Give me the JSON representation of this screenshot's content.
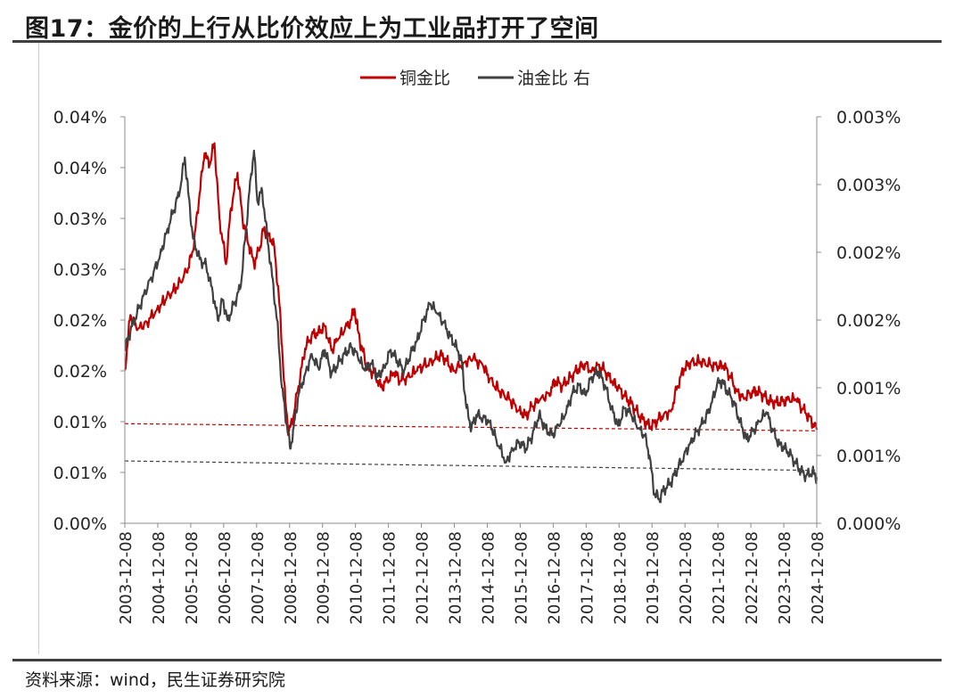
{
  "figure": {
    "title": "图17：金价的上行从比价效应上为工业品打开了空间",
    "source": "资料来源：wind，民生证券研究院"
  },
  "chart_data": {
    "type": "line",
    "legend_position": "top-center",
    "grid": false,
    "x_tick_labels": [
      "2003-12-08",
      "2004-12-08",
      "2005-12-08",
      "2006-12-08",
      "2007-12-08",
      "2008-12-08",
      "2009-12-08",
      "2010-12-08",
      "2011-12-08",
      "2012-12-08",
      "2013-12-08",
      "2014-12-08",
      "2015-12-08",
      "2016-12-08",
      "2017-12-08",
      "2018-12-08",
      "2019-12-08",
      "2020-12-08",
      "2021-12-08",
      "2022-12-08",
      "2023-12-08",
      "2024-12-08"
    ],
    "x_range": [
      2003.93,
      2024.93
    ],
    "y_left": {
      "ylim": [
        0,
        0.04
      ],
      "tick_values": [
        0,
        0.005,
        0.01,
        0.015,
        0.02,
        0.025,
        0.03,
        0.035,
        0.04
      ],
      "tick_labels": [
        "0.00%",
        "0.01%",
        "0.01%",
        "0.02%",
        "0.02%",
        "0.03%",
        "0.03%",
        "0.04%",
        "0.04%"
      ]
    },
    "y_right": {
      "ylim": [
        0,
        0.003
      ],
      "tick_values": [
        0,
        0.0005,
        0.001,
        0.0015,
        0.002,
        0.0025,
        0.003
      ],
      "tick_labels": [
        "0.000%",
        "0.001%",
        "0.001%",
        "0.002%",
        "0.002%",
        "0.003%",
        "0.003%"
      ]
    },
    "series": [
      {
        "name": "铜金比",
        "axis": "left",
        "color": "#c00000",
        "points": [
          [
            2003.93,
            0.0151
          ],
          [
            2004.1,
            0.0205
          ],
          [
            2004.3,
            0.019
          ],
          [
            2004.6,
            0.0198
          ],
          [
            2004.9,
            0.021
          ],
          [
            2005.2,
            0.0222
          ],
          [
            2005.5,
            0.0232
          ],
          [
            2005.8,
            0.0247
          ],
          [
            2006.0,
            0.0268
          ],
          [
            2006.2,
            0.0325
          ],
          [
            2006.35,
            0.0364
          ],
          [
            2006.5,
            0.0352
          ],
          [
            2006.65,
            0.0374
          ],
          [
            2006.8,
            0.03
          ],
          [
            2006.9,
            0.0278
          ],
          [
            2007.0,
            0.0255
          ],
          [
            2007.15,
            0.031
          ],
          [
            2007.35,
            0.0345
          ],
          [
            2007.5,
            0.03
          ],
          [
            2007.7,
            0.0273
          ],
          [
            2007.85,
            0.0255
          ],
          [
            2008.0,
            0.0268
          ],
          [
            2008.15,
            0.029
          ],
          [
            2008.3,
            0.0283
          ],
          [
            2008.45,
            0.0276
          ],
          [
            2008.6,
            0.0225
          ],
          [
            2008.7,
            0.0175
          ],
          [
            2008.8,
            0.012
          ],
          [
            2008.9,
            0.009
          ],
          [
            2009.0,
            0.0098
          ],
          [
            2009.2,
            0.0135
          ],
          [
            2009.4,
            0.0172
          ],
          [
            2009.6,
            0.0185
          ],
          [
            2009.8,
            0.0188
          ],
          [
            2010.0,
            0.0194
          ],
          [
            2010.2,
            0.017
          ],
          [
            2010.4,
            0.0181
          ],
          [
            2010.6,
            0.019
          ],
          [
            2010.8,
            0.02
          ],
          [
            2010.9,
            0.0211
          ],
          [
            2011.0,
            0.019
          ],
          [
            2011.1,
            0.0175
          ],
          [
            2011.3,
            0.0152
          ],
          [
            2011.5,
            0.0148
          ],
          [
            2011.7,
            0.0134
          ],
          [
            2011.9,
            0.014
          ],
          [
            2012.1,
            0.0148
          ],
          [
            2012.3,
            0.014
          ],
          [
            2012.5,
            0.0144
          ],
          [
            2012.8,
            0.015
          ],
          [
            2013.0,
            0.0155
          ],
          [
            2013.3,
            0.016
          ],
          [
            2013.5,
            0.0166
          ],
          [
            2013.7,
            0.016
          ],
          [
            2013.9,
            0.015
          ],
          [
            2014.2,
            0.0158
          ],
          [
            2014.5,
            0.0162
          ],
          [
            2014.8,
            0.0155
          ],
          [
            2015.0,
            0.0142
          ],
          [
            2015.3,
            0.013
          ],
          [
            2015.6,
            0.0122
          ],
          [
            2015.9,
            0.0111
          ],
          [
            2016.1,
            0.0106
          ],
          [
            2016.3,
            0.0115
          ],
          [
            2016.5,
            0.012
          ],
          [
            2016.8,
            0.0128
          ],
          [
            2017.0,
            0.014
          ],
          [
            2017.2,
            0.0135
          ],
          [
            2017.5,
            0.0145
          ],
          [
            2017.7,
            0.0152
          ],
          [
            2017.9,
            0.0157
          ],
          [
            2018.1,
            0.015
          ],
          [
            2018.3,
            0.0156
          ],
          [
            2018.5,
            0.015
          ],
          [
            2018.7,
            0.014
          ],
          [
            2018.9,
            0.0133
          ],
          [
            2019.1,
            0.0125
          ],
          [
            2019.3,
            0.0118
          ],
          [
            2019.5,
            0.0108
          ],
          [
            2019.7,
            0.01
          ],
          [
            2019.9,
            0.0095
          ],
          [
            2020.1,
            0.0102
          ],
          [
            2020.3,
            0.0108
          ],
          [
            2020.5,
            0.011
          ],
          [
            2020.7,
            0.0135
          ],
          [
            2020.9,
            0.0152
          ],
          [
            2021.1,
            0.0158
          ],
          [
            2021.4,
            0.0159
          ],
          [
            2021.7,
            0.0156
          ],
          [
            2021.9,
            0.0154
          ],
          [
            2022.1,
            0.0155
          ],
          [
            2022.3,
            0.0145
          ],
          [
            2022.5,
            0.013
          ],
          [
            2022.7,
            0.0124
          ],
          [
            2022.9,
            0.0128
          ],
          [
            2023.1,
            0.013
          ],
          [
            2023.3,
            0.0126
          ],
          [
            2023.5,
            0.012
          ],
          [
            2023.7,
            0.0119
          ],
          [
            2023.9,
            0.012
          ],
          [
            2024.1,
            0.0121
          ],
          [
            2024.3,
            0.0122
          ],
          [
            2024.5,
            0.0112
          ],
          [
            2024.7,
            0.0105
          ],
          [
            2024.93,
            0.0092
          ]
        ]
      },
      {
        "name": "油金比 右",
        "axis": "right",
        "color": "#404040",
        "points": [
          [
            2003.93,
            0.00128
          ],
          [
            2004.1,
            0.00142
          ],
          [
            2004.3,
            0.00155
          ],
          [
            2004.5,
            0.00168
          ],
          [
            2004.8,
            0.00185
          ],
          [
            2005.0,
            0.00198
          ],
          [
            2005.2,
            0.00215
          ],
          [
            2005.4,
            0.0023
          ],
          [
            2005.6,
            0.00245
          ],
          [
            2005.75,
            0.0027
          ],
          [
            2005.85,
            0.00245
          ],
          [
            2006.0,
            0.0021
          ],
          [
            2006.2,
            0.00195
          ],
          [
            2006.4,
            0.0019
          ],
          [
            2006.6,
            0.0017
          ],
          [
            2006.75,
            0.0015
          ],
          [
            2006.9,
            0.00165
          ],
          [
            2007.05,
            0.0015
          ],
          [
            2007.25,
            0.00162
          ],
          [
            2007.45,
            0.00175
          ],
          [
            2007.6,
            0.00215
          ],
          [
            2007.75,
            0.00255
          ],
          [
            2007.85,
            0.00275
          ],
          [
            2007.95,
            0.00238
          ],
          [
            2008.1,
            0.00245
          ],
          [
            2008.25,
            0.00212
          ],
          [
            2008.4,
            0.00182
          ],
          [
            2008.55,
            0.0015
          ],
          [
            2008.7,
            0.001
          ],
          [
            2008.85,
            0.00072
          ],
          [
            2008.95,
            0.00055
          ],
          [
            2009.05,
            0.0007
          ],
          [
            2009.2,
            0.00095
          ],
          [
            2009.4,
            0.0011
          ],
          [
            2009.6,
            0.00125
          ],
          [
            2009.8,
            0.00115
          ],
          [
            2010.0,
            0.00128
          ],
          [
            2010.2,
            0.0011
          ],
          [
            2010.4,
            0.00118
          ],
          [
            2010.6,
            0.00125
          ],
          [
            2010.8,
            0.0013
          ],
          [
            2011.0,
            0.00123
          ],
          [
            2011.2,
            0.00113
          ],
          [
            2011.4,
            0.00118
          ],
          [
            2011.6,
            0.00108
          ],
          [
            2011.8,
            0.00115
          ],
          [
            2012.0,
            0.00128
          ],
          [
            2012.2,
            0.0012
          ],
          [
            2012.4,
            0.00112
          ],
          [
            2012.6,
            0.00125
          ],
          [
            2012.8,
            0.00135
          ],
          [
            2013.0,
            0.0015
          ],
          [
            2013.2,
            0.00162
          ],
          [
            2013.4,
            0.00155
          ],
          [
            2013.6,
            0.00148
          ],
          [
            2013.8,
            0.00138
          ],
          [
            2014.0,
            0.0013
          ],
          [
            2014.15,
            0.0012
          ],
          [
            2014.3,
            0.00085
          ],
          [
            2014.45,
            0.0007
          ],
          [
            2014.6,
            0.0008
          ],
          [
            2014.8,
            0.00078
          ],
          [
            2015.0,
            0.00075
          ],
          [
            2015.2,
            0.00062
          ],
          [
            2015.5,
            0.00045
          ],
          [
            2015.7,
            0.00055
          ],
          [
            2015.9,
            0.0006
          ],
          [
            2016.1,
            0.00055
          ],
          [
            2016.3,
            0.00065
          ],
          [
            2016.5,
            0.0008
          ],
          [
            2016.7,
            0.0007
          ],
          [
            2016.9,
            0.00065
          ],
          [
            2017.1,
            0.00072
          ],
          [
            2017.3,
            0.0008
          ],
          [
            2017.5,
            0.00095
          ],
          [
            2017.7,
            0.00102
          ],
          [
            2017.9,
            0.00095
          ],
          [
            2018.1,
            0.00108
          ],
          [
            2018.3,
            0.00112
          ],
          [
            2018.5,
            0.00102
          ],
          [
            2018.7,
            0.00085
          ],
          [
            2018.9,
            0.00072
          ],
          [
            2019.1,
            0.00085
          ],
          [
            2019.3,
            0.0008
          ],
          [
            2019.5,
            0.0007
          ],
          [
            2019.7,
            0.00065
          ],
          [
            2019.85,
            0.0005
          ],
          [
            2020.0,
            0.00022
          ],
          [
            2020.15,
            0.00018
          ],
          [
            2020.3,
            0.00025
          ],
          [
            2020.5,
            0.0003
          ],
          [
            2020.7,
            0.0004
          ],
          [
            2020.9,
            0.0005
          ],
          [
            2021.1,
            0.0006
          ],
          [
            2021.3,
            0.00068
          ],
          [
            2021.5,
            0.00075
          ],
          [
            2021.7,
            0.00085
          ],
          [
            2021.9,
            0.00102
          ],
          [
            2022.05,
            0.00105
          ],
          [
            2022.2,
            0.00098
          ],
          [
            2022.4,
            0.0009
          ],
          [
            2022.6,
            0.00075
          ],
          [
            2022.8,
            0.00062
          ],
          [
            2023.0,
            0.00068
          ],
          [
            2023.2,
            0.00075
          ],
          [
            2023.4,
            0.00082
          ],
          [
            2023.6,
            0.00068
          ],
          [
            2023.8,
            0.00058
          ],
          [
            2024.0,
            0.00055
          ],
          [
            2024.2,
            0.00048
          ],
          [
            2024.4,
            0.0004
          ],
          [
            2024.6,
            0.00035
          ],
          [
            2024.8,
            0.00038
          ],
          [
            2024.93,
            0.00034
          ]
        ]
      }
    ],
    "reference_lines": [
      {
        "axis": "left",
        "color": "#c00000",
        "style": "dashed",
        "from": [
          2003.93,
          0.0098
        ],
        "to": [
          2024.93,
          0.0091
        ]
      },
      {
        "axis": "right",
        "color": "#404040",
        "style": "dashed",
        "from": [
          2003.93,
          0.00046
        ],
        "to": [
          2024.93,
          0.00039
        ]
      }
    ]
  }
}
